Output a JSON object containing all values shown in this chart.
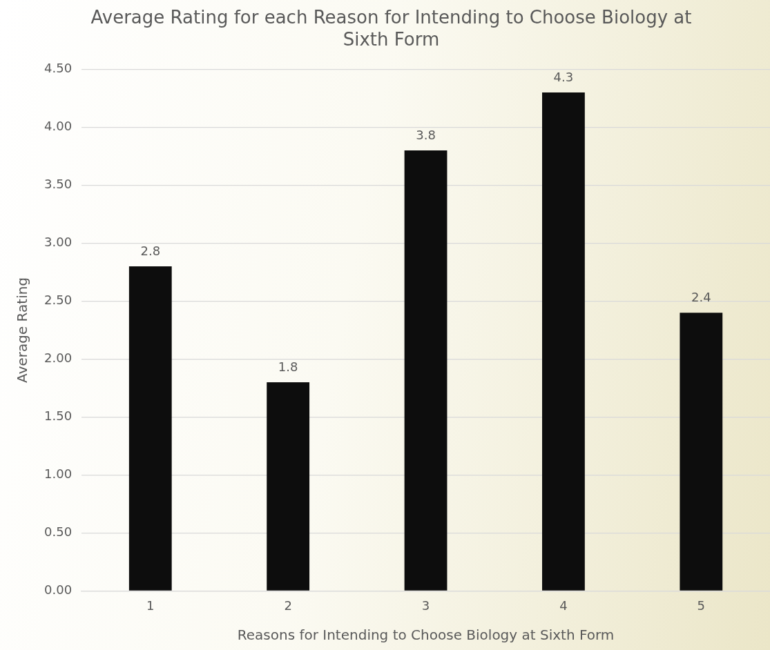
{
  "chart_data": {
    "type": "bar",
    "title": "Average Rating for each Reason for Intending to Choose Biology at Sixth Form",
    "xlabel": "Reasons for Intending to Choose Biology at Sixth Form",
    "ylabel": "Average Rating",
    "categories": [
      "1",
      "2",
      "3",
      "4",
      "5"
    ],
    "values": [
      2.8,
      1.8,
      3.8,
      4.3,
      2.4
    ],
    "color": "#0d0d0d",
    "ylim": [
      0,
      4.5
    ],
    "yticks": [
      {
        "value": 0,
        "label": "0.00"
      },
      {
        "value": 0.5,
        "label": "0.50"
      },
      {
        "value": 1,
        "label": "1.00"
      },
      {
        "value": 1.5,
        "label": "1.50"
      },
      {
        "value": 2,
        "label": "2.00"
      },
      {
        "value": 2.5,
        "label": "2.50"
      },
      {
        "value": 3,
        "label": "3.00"
      },
      {
        "value": 3.5,
        "label": "3.50"
      },
      {
        "value": 4,
        "label": "4.00"
      },
      {
        "value": 4.5,
        "label": "4.50"
      }
    ],
    "grid": "y",
    "data_labels": true,
    "legend": false
  }
}
